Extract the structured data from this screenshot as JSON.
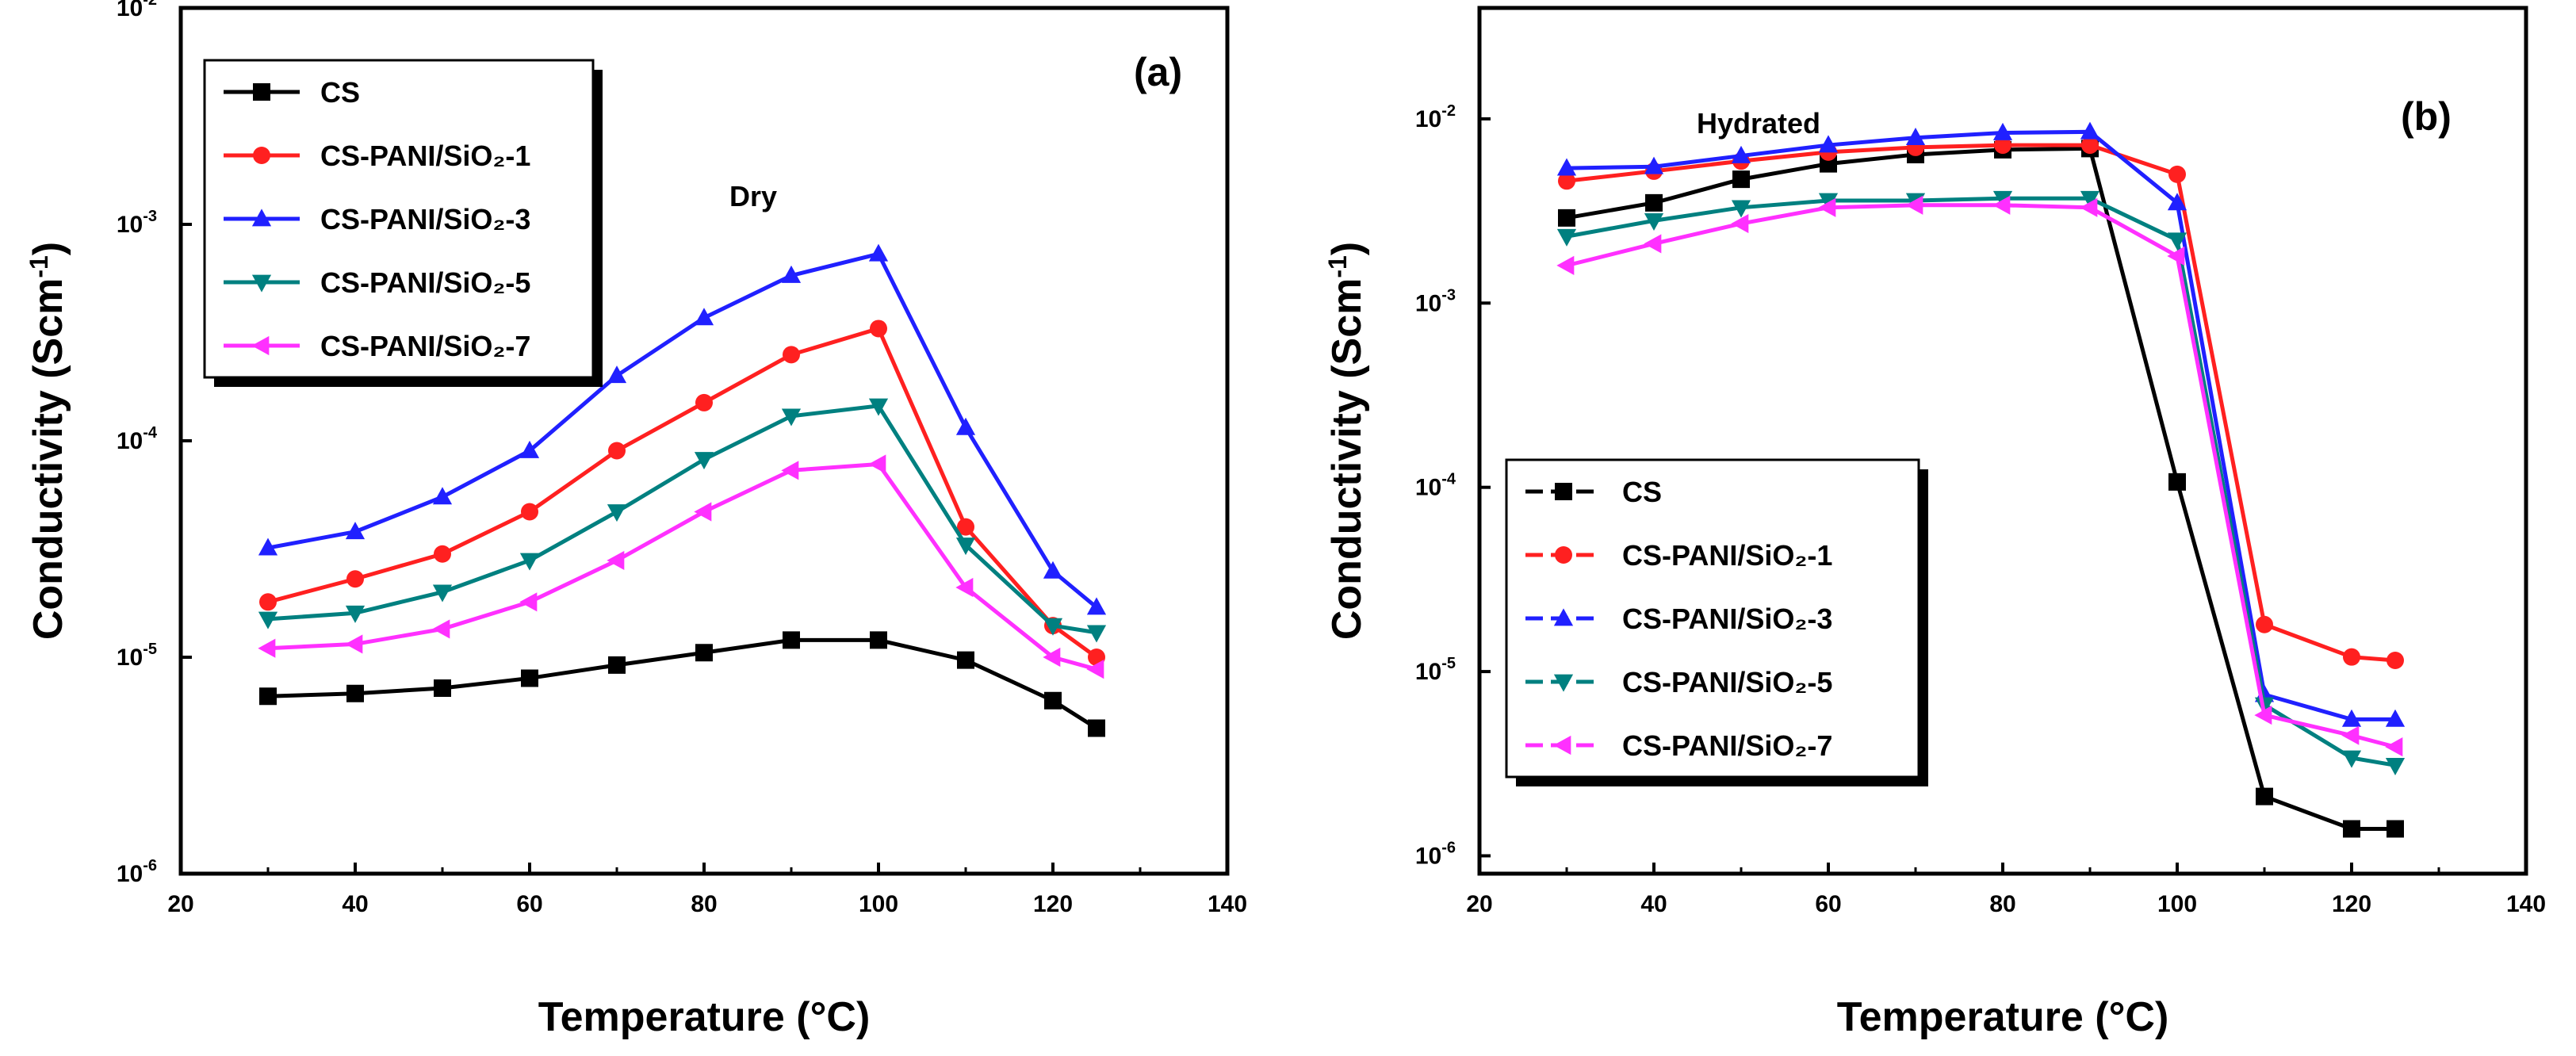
{
  "chart_data": [
    {
      "type": "line",
      "panel_label": "(a)",
      "annotation": "Dry",
      "xlabel": "Temperature (°C)",
      "ylabel": "Conductivity (Scm",
      "ylabel_sup": "-1",
      "ylabel_close": ")",
      "xlim": [
        20,
        140
      ],
      "ylim": [
        1e-06,
        0.01
      ],
      "yscale": "log",
      "x_ticks": [
        "20",
        "40",
        "60",
        "80",
        "100",
        "120",
        "140"
      ],
      "y_ticks": [
        {
          "base": "10",
          "exp": "-6"
        },
        {
          "base": "10",
          "exp": "-5"
        },
        {
          "base": "10",
          "exp": "-4"
        },
        {
          "base": "10",
          "exp": "-3"
        },
        {
          "base": "10",
          "exp": "-2"
        }
      ],
      "legend_position": "top-left",
      "x": [
        30,
        40,
        50,
        60,
        70,
        80,
        90,
        100,
        110,
        120,
        125
      ],
      "series": [
        {
          "name": "CS",
          "color": "#000000",
          "marker": "square",
          "values": [
            6.6e-06,
            6.8e-06,
            7.2e-06,
            8e-06,
            9.2e-06,
            1.05e-05,
            1.2e-05,
            1.2e-05,
            9.7e-06,
            6.3e-06,
            4.7e-06
          ]
        },
        {
          "name": "CS-PANI/SiO₂-1",
          "color": "#ff2020",
          "marker": "circle",
          "values": [
            1.8e-05,
            2.3e-05,
            3e-05,
            4.7e-05,
            9e-05,
            0.00015,
            0.00025,
            0.00033,
            4e-05,
            1.4e-05,
            1e-05
          ]
        },
        {
          "name": "CS-PANI/SiO₂-3",
          "color": "#2020ff",
          "marker": "triangle-up",
          "values": [
            3.2e-05,
            3.8e-05,
            5.5e-05,
            9e-05,
            0.0002,
            0.00037,
            0.00058,
            0.00073,
            0.000115,
            2.5e-05,
            1.7e-05
          ]
        },
        {
          "name": "CS-PANI/SiO₂-5",
          "color": "#008080",
          "marker": "triangle-down",
          "values": [
            1.5e-05,
            1.6e-05,
            2e-05,
            2.8e-05,
            4.7e-05,
            8.2e-05,
            0.00013,
            0.000145,
            3.3e-05,
            1.4e-05,
            1.3e-05
          ]
        },
        {
          "name": "CS-PANI/SiO₂-7",
          "color": "#ff30ff",
          "marker": "triangle-left",
          "values": [
            1.1e-05,
            1.15e-05,
            1.35e-05,
            1.8e-05,
            2.8e-05,
            4.7e-05,
            7.3e-05,
            7.8e-05,
            2.1e-05,
            1e-05,
            8.8e-06
          ]
        }
      ]
    },
    {
      "type": "line",
      "panel_label": "(b)",
      "annotation": "Hydrated",
      "xlabel": "Temperature (°C)",
      "ylabel": "Conductivity (Scm",
      "ylabel_sup": "-1",
      "ylabel_close": ")",
      "xlim": [
        20,
        140
      ],
      "ylim": [
        8e-07,
        0.04
      ],
      "yscale": "log",
      "x_ticks": [
        "20",
        "40",
        "60",
        "80",
        "100",
        "120",
        "140"
      ],
      "y_ticks": [
        {
          "base": "10",
          "exp": "-6"
        },
        {
          "base": "10",
          "exp": "-5"
        },
        {
          "base": "10",
          "exp": "-4"
        },
        {
          "base": "10",
          "exp": "-3"
        },
        {
          "base": "10",
          "exp": "-2"
        }
      ],
      "legend_position": "bottom-left",
      "x": [
        30,
        40,
        50,
        60,
        70,
        80,
        90,
        100,
        110,
        120,
        125
      ],
      "series": [
        {
          "name": "CS",
          "color": "#000000",
          "marker": "square",
          "values": [
            0.0029,
            0.0035,
            0.0047,
            0.0057,
            0.0064,
            0.0068,
            0.0069,
            0.000107,
            2.1e-06,
            1.4e-06,
            1.4e-06
          ]
        },
        {
          "name": "CS-PANI/SiO₂-1",
          "color": "#ff2020",
          "marker": "circle",
          "values": [
            0.0046,
            0.0052,
            0.0059,
            0.0066,
            0.007,
            0.0072,
            0.0072,
            0.005,
            1.8e-05,
            1.2e-05,
            1.15e-05
          ]
        },
        {
          "name": "CS-PANI/SiO₂-3",
          "color": "#2020ff",
          "marker": "triangle-up",
          "values": [
            0.0054,
            0.0055,
            0.0063,
            0.0072,
            0.0079,
            0.0084,
            0.0085,
            0.0035,
            7.5e-06,
            5.5e-06,
            5.5e-06
          ]
        },
        {
          "name": "CS-PANI/SiO₂-5",
          "color": "#008080",
          "marker": "triangle-down",
          "values": [
            0.0023,
            0.0028,
            0.0033,
            0.0036,
            0.0036,
            0.0037,
            0.0037,
            0.0022,
            6.6e-06,
            3.4e-06,
            3.1e-06
          ]
        },
        {
          "name": "CS-PANI/SiO₂-7",
          "color": "#ff30ff",
          "marker": "triangle-left",
          "values": [
            0.0016,
            0.0021,
            0.0027,
            0.0033,
            0.0034,
            0.0034,
            0.0033,
            0.0018,
            5.8e-06,
            4.5e-06,
            3.9e-06
          ]
        }
      ]
    }
  ]
}
